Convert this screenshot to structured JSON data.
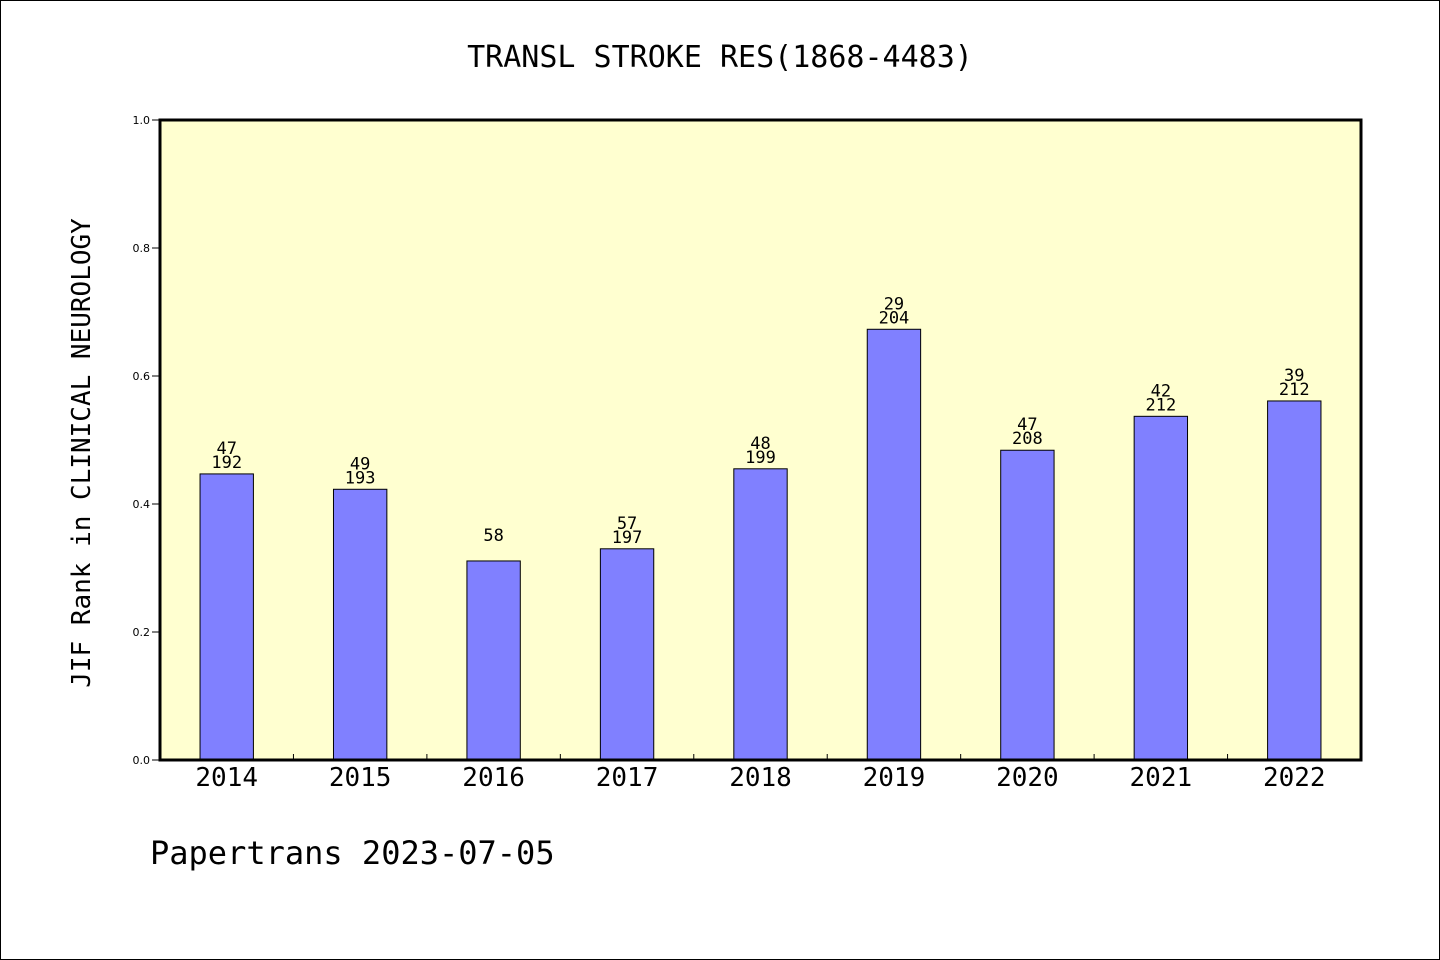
{
  "footer": {
    "watermark": "Papertrans 2023-07-05"
  },
  "colors": {
    "plot_bg": "#ffffd0",
    "bar_fill": "#8080ff",
    "bar_stroke": "#000000"
  },
  "chart_data": {
    "type": "bar",
    "title": "TRANSL STROKE RES(1868-4483)",
    "xlabel": "",
    "ylabel": "JIF Rank in CLINICAL NEUROLOGY",
    "ylim": [
      0,
      1.0
    ],
    "yticks": [
      0.0,
      0.2,
      0.4,
      0.6,
      0.8,
      1.0
    ],
    "ytick_labels": [
      "0.0",
      "0.2",
      "0.4",
      "0.6",
      "0.8",
      "1.0"
    ],
    "grid": false,
    "categories": [
      "2014",
      "2015",
      "2016",
      "2017",
      "2018",
      "2019",
      "2020",
      "2021",
      "2022"
    ],
    "values": [
      0.447,
      0.423,
      0.311,
      0.33,
      0.455,
      0.673,
      0.484,
      0.537,
      0.561
    ],
    "rank_labels": [
      "47",
      "49",
      "58",
      "57",
      "48",
      "29",
      "47",
      "42",
      "39"
    ],
    "total_labels": [
      "192",
      "193",
      "",
      "197",
      "199",
      "204",
      "208",
      "212",
      "212"
    ]
  }
}
